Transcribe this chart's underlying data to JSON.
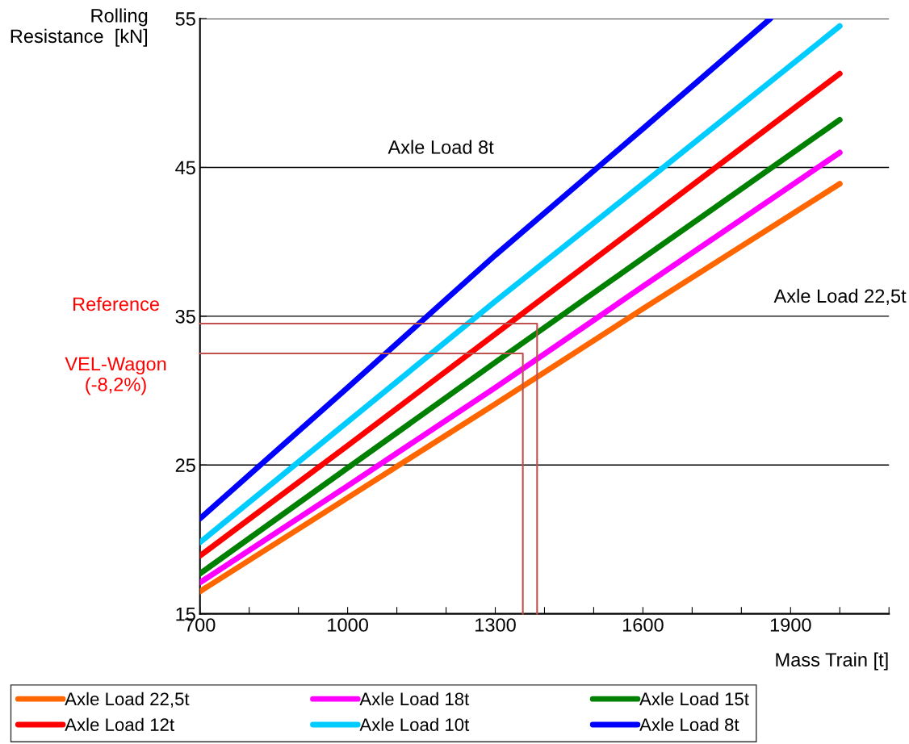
{
  "chart_data": {
    "type": "line",
    "xlabel": "Mass Train [t]",
    "ylabel": "Rolling\nResistance  [kN]",
    "xlim": [
      700,
      2100
    ],
    "ylim": [
      15,
      55
    ],
    "xticks": [
      700,
      {
        "value": 800,
        "label": null
      },
      {
        "value": 900,
        "label": null
      },
      1000,
      {
        "value": 1100,
        "label": null
      },
      {
        "value": 1200,
        "label": null
      },
      1300,
      {
        "value": 1400,
        "label": null
      },
      {
        "value": 1500,
        "label": null
      },
      1600,
      {
        "value": 1700,
        "label": null
      },
      {
        "value": 1800,
        "label": null
      },
      1900,
      {
        "value": 2000,
        "label": null
      },
      {
        "value": 2100,
        "label": null
      }
    ],
    "yticks": [
      15,
      25,
      35,
      45,
      55
    ],
    "grid": "y",
    "legend": "bottom",
    "marker": "none",
    "line_style": "solid",
    "series": [
      {
        "name": "Axle Load 22,5t",
        "color": "#ff6600",
        "x": [
          700,
          1000,
          1300,
          1600,
          2000
        ],
        "values": [
          16.5,
          22.8,
          29.1,
          35.5,
          43.9
        ]
      },
      {
        "name": "Axle Load 18t",
        "color": "#ff00ff",
        "x": [
          700,
          1000,
          1300,
          1600,
          2000
        ],
        "values": [
          17.1,
          23.6,
          30.2,
          37.0,
          46.0
        ]
      },
      {
        "name": "Axle Load 15t",
        "color": "#008000",
        "x": [
          700,
          1000,
          1300,
          1600,
          2000
        ],
        "values": [
          17.7,
          24.8,
          31.9,
          38.9,
          48.2
        ]
      },
      {
        "name": "Axle Load 12t",
        "color": "#ff0000",
        "x": [
          700,
          1000,
          1300,
          1600,
          2000
        ],
        "values": [
          18.9,
          26.3,
          33.8,
          41.3,
          51.3
        ]
      },
      {
        "name": "Axle Load 10t",
        "color": "#00ccff",
        "x": [
          700,
          1000,
          1300,
          1600,
          2000
        ],
        "values": [
          19.8,
          27.9,
          36.0,
          43.9,
          54.5
        ]
      },
      {
        "name": "Axle Load 8t",
        "color": "#0000ff",
        "x": [
          700,
          1000,
          1300,
          1600,
          1859
        ],
        "values": [
          21.4,
          30.2,
          39.1,
          47.6,
          55
        ]
      },
      {
        "color": "#c0504d",
        "x": [
          700,
          1385,
          1385
        ],
        "values": [
          34.5,
          34.5,
          15
        ]
      },
      {
        "color": "#c0504d",
        "x": [
          700,
          1356,
          1356
        ],
        "values": [
          32.5,
          32.5,
          15
        ]
      }
    ],
    "annotations": [
      "Axle Load 8t",
      "Axle Load 22,5t",
      {
        "text": "Reference",
        "x": 700,
        "y": 34.5
      },
      {
        "text": "VEL-Wagon\n(-8,2%)",
        "x": 700,
        "y": 32.5
      }
    ]
  }
}
